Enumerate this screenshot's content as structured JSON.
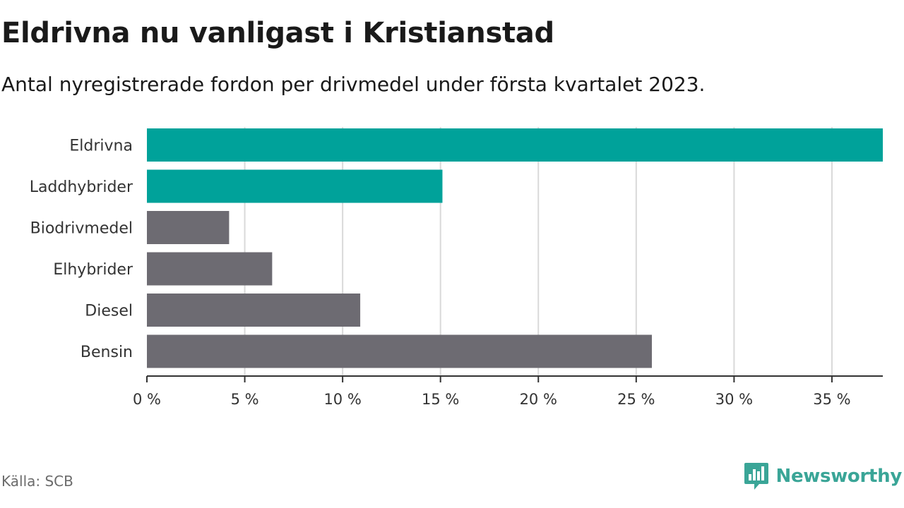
{
  "title": "Eldrivna nu vanligast i Kristianstad",
  "subtitle": "Antal nyregistrerade fordon per drivmedel under första kvartalet 2023.",
  "source": "Källa: SCB",
  "brand": {
    "name": "Newsworthy",
    "icon": "newsworthy-logo-icon",
    "color": "#3aa597"
  },
  "colors": {
    "highlight": "#00a29a",
    "default": "#6d6b72",
    "grid": "#d9d9d9",
    "axis": "#333333"
  },
  "chart_data": {
    "type": "bar",
    "orientation": "horizontal",
    "categories": [
      "Eldrivna",
      "Laddhybrider",
      "Biodrivmedel",
      "Elhybrider",
      "Diesel",
      "Bensin"
    ],
    "values": [
      37.6,
      15.1,
      4.2,
      6.4,
      10.9,
      25.8
    ],
    "highlighted": [
      "Eldrivna",
      "Laddhybrider"
    ],
    "xlim": [
      0,
      37.6
    ],
    "xticks": [
      0,
      5,
      10,
      15,
      20,
      25,
      30,
      35
    ],
    "xtick_labels": [
      "0 %",
      "5 %",
      "10 %",
      "15 %",
      "20 %",
      "25 %",
      "30 %",
      "35 %"
    ],
    "xlabel": "",
    "ylabel": "",
    "grid": "vertical",
    "legend": "none"
  }
}
